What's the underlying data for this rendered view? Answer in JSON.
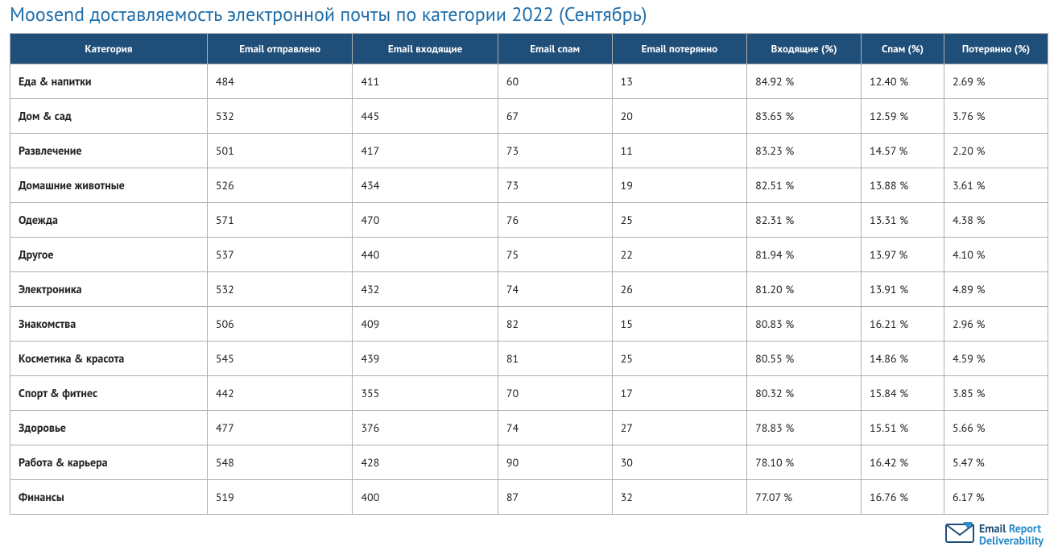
{
  "title": "Moosend доставляемость электронной почты по категории 2022 (Сентябрь)",
  "colors": {
    "title": "#1f6ea8",
    "header_bg": "#1f4e79",
    "header_text": "#ffffff",
    "border": "#b0b0b0",
    "cell_text": "#222222",
    "background": "#ffffff",
    "logo_dark": "#1f4e79",
    "logo_light": "#2a8cc9"
  },
  "table": {
    "col_widths_pct": [
      19,
      14,
      14,
      11,
      13,
      11,
      8,
      10
    ],
    "columns": [
      "Категория",
      "Email отправлено",
      "Email входящие",
      "Email спам",
      "Email потерянно",
      "Входящие (%)",
      "Спам (%)",
      "Потерянно (%)"
    ],
    "rows": [
      [
        "Еда & напитки",
        "484",
        "411",
        "60",
        "13",
        "84.92 %",
        "12.40 %",
        "2.69 %"
      ],
      [
        "Дом & сад",
        "532",
        "445",
        "67",
        "20",
        "83.65 %",
        "12.59 %",
        "3.76 %"
      ],
      [
        "Развлечение",
        "501",
        "417",
        "73",
        "11",
        "83.23 %",
        "14.57 %",
        "2.20 %"
      ],
      [
        "Домашние животные",
        "526",
        "434",
        "73",
        "19",
        "82.51 %",
        "13.88 %",
        "3.61 %"
      ],
      [
        "Одежда",
        "571",
        "470",
        "76",
        "25",
        "82.31 %",
        "13.31 %",
        "4.38 %"
      ],
      [
        "Другое",
        "537",
        "440",
        "75",
        "22",
        "81.94 %",
        "13.97 %",
        "4.10 %"
      ],
      [
        "Электроника",
        "532",
        "432",
        "74",
        "26",
        "81.20 %",
        "13.91 %",
        "4.89 %"
      ],
      [
        "Знакомства",
        "506",
        "409",
        "82",
        "15",
        "80.83 %",
        "16.21 %",
        "2.96 %"
      ],
      [
        "Косметика & красота",
        "545",
        "439",
        "81",
        "25",
        "80.55 %",
        "14.86 %",
        "4.59 %"
      ],
      [
        "Спорт & фитнес",
        "442",
        "355",
        "70",
        "17",
        "80.32 %",
        "15.84 %",
        "3.85 %"
      ],
      [
        "Здоровье",
        "477",
        "376",
        "74",
        "27",
        "78.83 %",
        "15.51 %",
        "5.66 %"
      ],
      [
        "Работа & карьера",
        "548",
        "428",
        "90",
        "30",
        "78.10 %",
        "16.42 %",
        "5.47 %"
      ],
      [
        "Финансы",
        "519",
        "400",
        "87",
        "32",
        "77.07 %",
        "16.76 %",
        "6.17 %"
      ]
    ]
  },
  "logo": {
    "line1_a": "Email",
    "line1_b": "Report",
    "line2": "Deliverability"
  }
}
